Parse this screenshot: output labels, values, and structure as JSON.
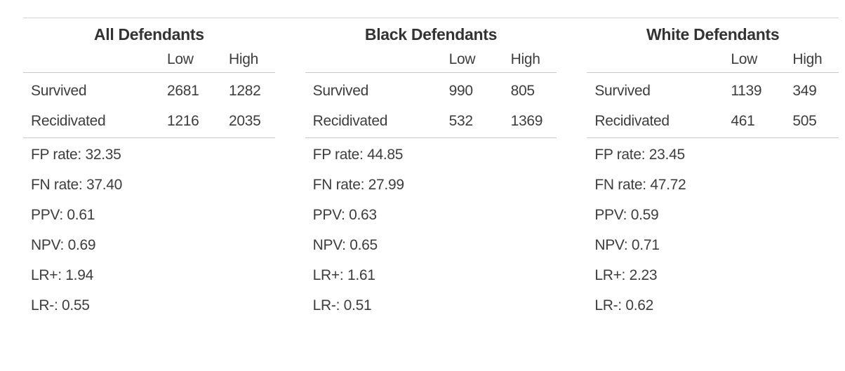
{
  "colors": {
    "background": "#ffffff",
    "text": "#3d3d3d",
    "heading": "#333333",
    "rule": "#c9c9c9"
  },
  "panels": [
    {
      "title": "All Defendants",
      "col_low": "Low",
      "col_high": "High",
      "rows": [
        {
          "label": "Survived",
          "low": "2681",
          "high": "1282"
        },
        {
          "label": "Recidivated",
          "low": "1216",
          "high": "2035"
        }
      ],
      "stats": [
        {
          "label": "FP rate",
          "value": "32.35",
          "text": "FP rate: 32.35"
        },
        {
          "label": "FN rate",
          "value": "37.40",
          "text": "FN rate: 37.40"
        },
        {
          "label": "PPV",
          "value": "0.61",
          "text": "PPV: 0.61"
        },
        {
          "label": "NPV",
          "value": "0.69",
          "text": "NPV: 0.69"
        },
        {
          "label": "LR+",
          "value": "1.94",
          "text": "LR+: 1.94"
        },
        {
          "label": "LR-",
          "value": "0.55",
          "text": "LR-: 0.55"
        }
      ]
    },
    {
      "title": "Black Defendants",
      "col_low": "Low",
      "col_high": "High",
      "rows": [
        {
          "label": "Survived",
          "low": "990",
          "high": "805"
        },
        {
          "label": "Recidivated",
          "low": "532",
          "high": "1369"
        }
      ],
      "stats": [
        {
          "label": "FP rate",
          "value": "44.85",
          "text": "FP rate: 44.85"
        },
        {
          "label": "FN rate",
          "value": "27.99",
          "text": "FN rate: 27.99"
        },
        {
          "label": "PPV",
          "value": "0.63",
          "text": "PPV: 0.63"
        },
        {
          "label": "NPV",
          "value": "0.65",
          "text": "NPV: 0.65"
        },
        {
          "label": "LR+",
          "value": "1.61",
          "text": "LR+: 1.61"
        },
        {
          "label": "LR-",
          "value": "0.51",
          "text": "LR-: 0.51"
        }
      ]
    },
    {
      "title": "White Defendants",
      "col_low": "Low",
      "col_high": "High",
      "rows": [
        {
          "label": "Survived",
          "low": "1139",
          "high": "349"
        },
        {
          "label": "Recidivated",
          "low": "461",
          "high": "505"
        }
      ],
      "stats": [
        {
          "label": "FP rate",
          "value": "23.45",
          "text": "FP rate: 23.45"
        },
        {
          "label": "FN rate",
          "value": "47.72",
          "text": "FN rate: 47.72"
        },
        {
          "label": "PPV",
          "value": "0.59",
          "text": "PPV: 0.59"
        },
        {
          "label": "NPV",
          "value": "0.71",
          "text": "NPV: 0.71"
        },
        {
          "label": "LR+",
          "value": "2.23",
          "text": "LR+: 2.23"
        },
        {
          "label": "LR-",
          "value": "0.62",
          "text": "LR-: 0.62"
        }
      ]
    }
  ],
  "chart_data": [
    {
      "type": "table",
      "title": "All Defendants",
      "columns": [
        "",
        "Low",
        "High"
      ],
      "rows": [
        [
          "Survived",
          2681,
          1282
        ],
        [
          "Recidivated",
          1216,
          2035
        ]
      ],
      "stats": {
        "FP_rate": 32.35,
        "FN_rate": 37.4,
        "PPV": 0.61,
        "NPV": 0.69,
        "LR_plus": 1.94,
        "LR_minus": 0.55
      }
    },
    {
      "type": "table",
      "title": "Black Defendants",
      "columns": [
        "",
        "Low",
        "High"
      ],
      "rows": [
        [
          "Survived",
          990,
          805
        ],
        [
          "Recidivated",
          532,
          1369
        ]
      ],
      "stats": {
        "FP_rate": 44.85,
        "FN_rate": 27.99,
        "PPV": 0.63,
        "NPV": 0.65,
        "LR_plus": 1.61,
        "LR_minus": 0.51
      }
    },
    {
      "type": "table",
      "title": "White Defendants",
      "columns": [
        "",
        "Low",
        "High"
      ],
      "rows": [
        [
          "Survived",
          1139,
          349
        ],
        [
          "Recidivated",
          461,
          505
        ]
      ],
      "stats": {
        "FP_rate": 23.45,
        "FN_rate": 47.72,
        "PPV": 0.59,
        "NPV": 0.71,
        "LR_plus": 2.23,
        "LR_minus": 0.62
      }
    }
  ]
}
